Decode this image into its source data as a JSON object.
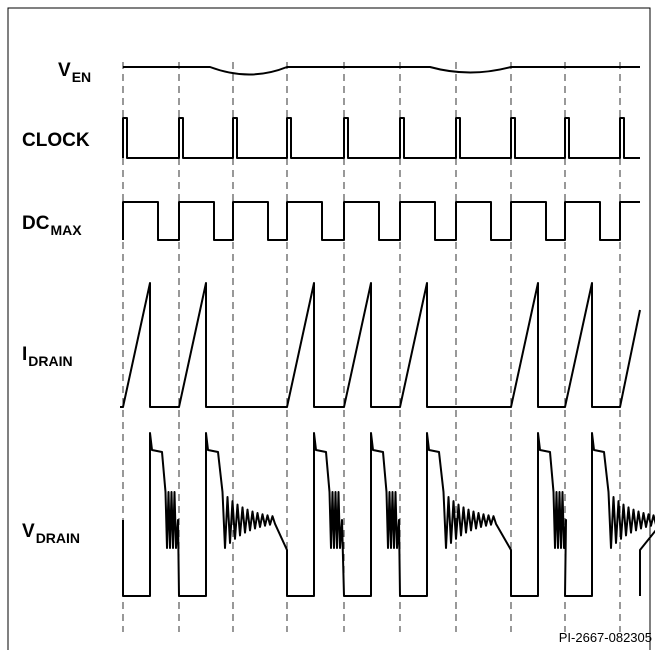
{
  "signals": [
    {
      "main": "V",
      "sub": "EN"
    },
    {
      "main": "CLOCK"
    },
    {
      "main": "DC",
      "sub": "MAX"
    },
    {
      "main": "I",
      "sub": "DRAIN"
    },
    {
      "main": "V",
      "sub": "DRAIN"
    }
  ],
  "footer": "PI-2667-082305"
}
